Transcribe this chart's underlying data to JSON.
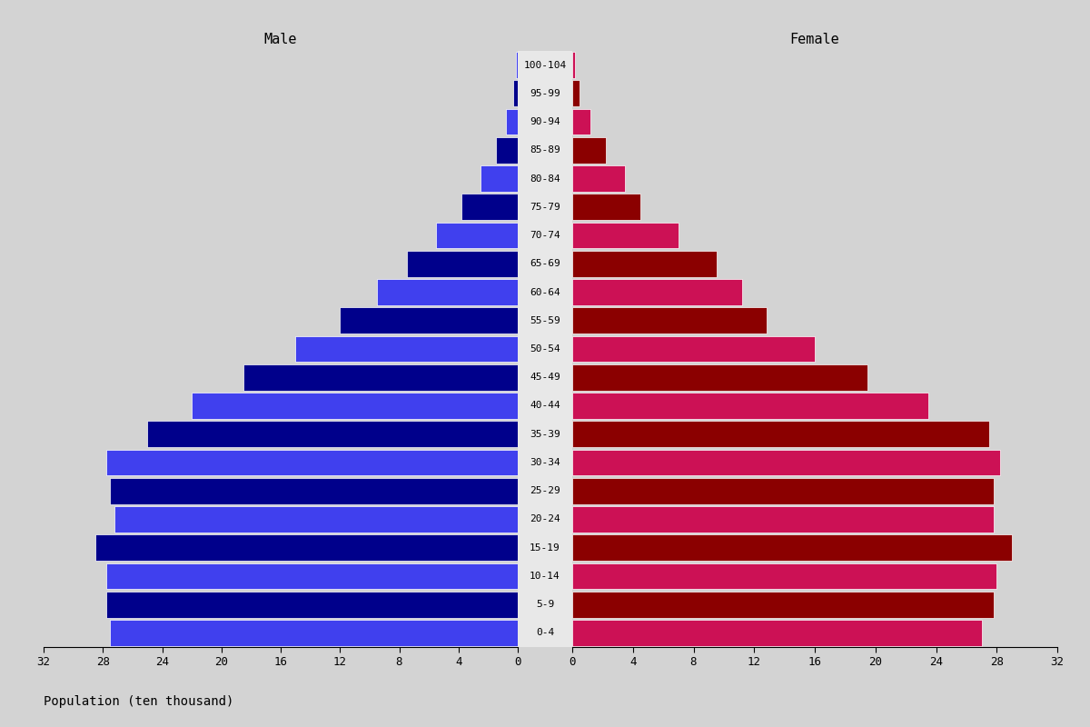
{
  "age_groups": [
    "0-4",
    "5-9",
    "10-14",
    "15-19",
    "20-24",
    "25-29",
    "30-34",
    "35-39",
    "40-44",
    "45-49",
    "50-54",
    "55-59",
    "60-64",
    "65-69",
    "70-74",
    "75-79",
    "80-84",
    "85-89",
    "90-94",
    "95-99",
    "100-104"
  ],
  "male_values": [
    27.5,
    27.8,
    27.8,
    28.5,
    27.2,
    27.5,
    27.8,
    25.0,
    22.0,
    18.5,
    15.0,
    12.0,
    9.5,
    7.5,
    5.5,
    3.8,
    2.5,
    1.5,
    0.8,
    0.3,
    0.1
  ],
  "female_values": [
    27.0,
    27.8,
    28.0,
    29.0,
    27.8,
    27.8,
    28.2,
    27.5,
    23.5,
    19.5,
    16.0,
    12.8,
    11.2,
    9.5,
    7.0,
    4.5,
    3.5,
    2.2,
    1.2,
    0.5,
    0.15
  ],
  "male_dark_color": "#00008B",
  "male_light_color": "#4040EE",
  "female_dark_color": "#8B0000",
  "female_light_color": "#CC1155",
  "male_label": "Male",
  "female_label": "Female",
  "xlabel": "Population (ten thousand)",
  "xlim": 32,
  "xticks": [
    0,
    4,
    8,
    12,
    16,
    20,
    24,
    28,
    32
  ],
  "background_color": "#d3d3d3",
  "plot_bg_color": "#d3d3d3",
  "center_bg_color": "#e8e8e8",
  "title_fontsize": 11,
  "tick_fontsize": 9,
  "age_label_fontsize": 8,
  "xlabel_fontsize": 10
}
